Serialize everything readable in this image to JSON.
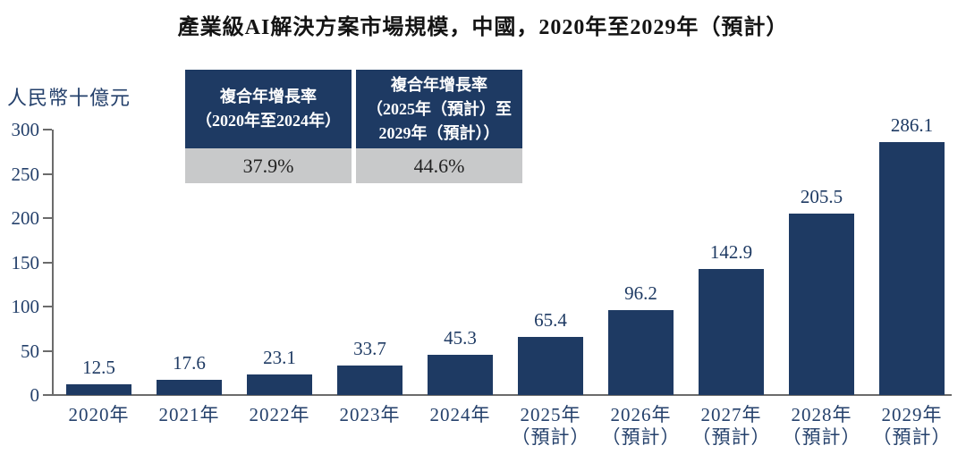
{
  "title": "產業級AI解決方案市場規模，中國，2020年至2029年（預計）",
  "unit_label": "人民幣十億元",
  "cagr_table": {
    "columns": [
      {
        "header_lines": [
          "複合年增長率",
          "（2020年至2024年）"
        ],
        "value": "37.9%"
      },
      {
        "header_lines": [
          "複合年增長率",
          "（2025年（預計）至",
          "2029年（預計））"
        ],
        "value": "44.6%"
      }
    ]
  },
  "colors": {
    "bar": "#1e3a63",
    "table_header_bg": "#1e3a63",
    "table_value_bg": "#c8c9ca",
    "axis_line": "#6b6b6b",
    "chart_text": "#24406b",
    "title_text": "#141414"
  },
  "chart_data": {
    "type": "bar",
    "title": "產業級AI解決方案市場規模，中國，2020年至2029年（預計）",
    "xlabel": "",
    "ylabel": "人民幣十億元",
    "categories": [
      "2020年",
      "2021年",
      "2022年",
      "2023年",
      "2024年",
      "2025年",
      "2026年",
      "2027年",
      "2028年",
      "2029年"
    ],
    "category_notes": [
      "",
      "",
      "",
      "",
      "",
      "（預計）",
      "（預計）",
      "（預計）",
      "（預計）",
      "（預計）"
    ],
    "values": [
      12.5,
      17.6,
      23.1,
      33.7,
      45.3,
      65.4,
      96.2,
      142.9,
      205.5,
      286.1
    ],
    "value_labels": [
      "12.5",
      "17.6",
      "23.1",
      "33.7",
      "45.3",
      "65.4",
      "96.2",
      "142.9",
      "205.5",
      "286.1"
    ],
    "ylim": [
      0,
      300
    ],
    "yticks": [
      0,
      50,
      100,
      150,
      200,
      250,
      300
    ],
    "grid": false,
    "legend": null,
    "bar_color": "#1e3a63"
  }
}
